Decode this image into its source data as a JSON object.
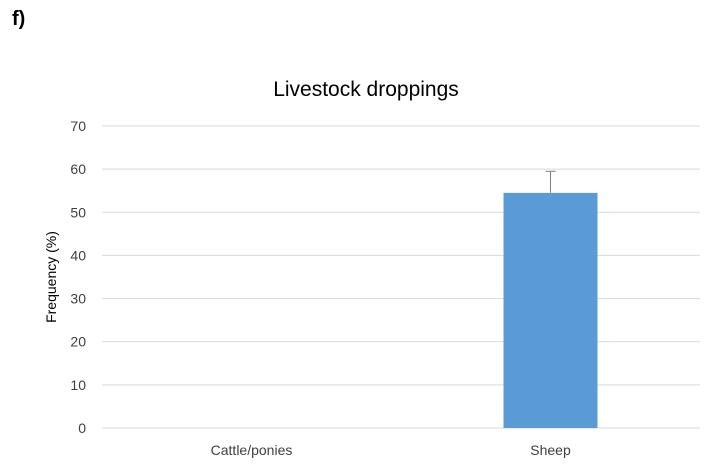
{
  "panel_label": "f)",
  "chart_data": {
    "type": "bar",
    "title": "Livestock droppings",
    "xlabel": "",
    "ylabel": "Frequency (%)",
    "categories": [
      "Cattle/ponies",
      "Sheep"
    ],
    "values": [
      0,
      54.5
    ],
    "error_upper": [
      0,
      5
    ],
    "ylim": [
      0,
      70
    ],
    "yticks": [
      0,
      10,
      20,
      30,
      40,
      50,
      60,
      70
    ],
    "grid": true,
    "legend": "none",
    "bar_color": "#5b9bd5",
    "grid_color": "#d9d9d9",
    "error_color": "#7f7f7f"
  }
}
